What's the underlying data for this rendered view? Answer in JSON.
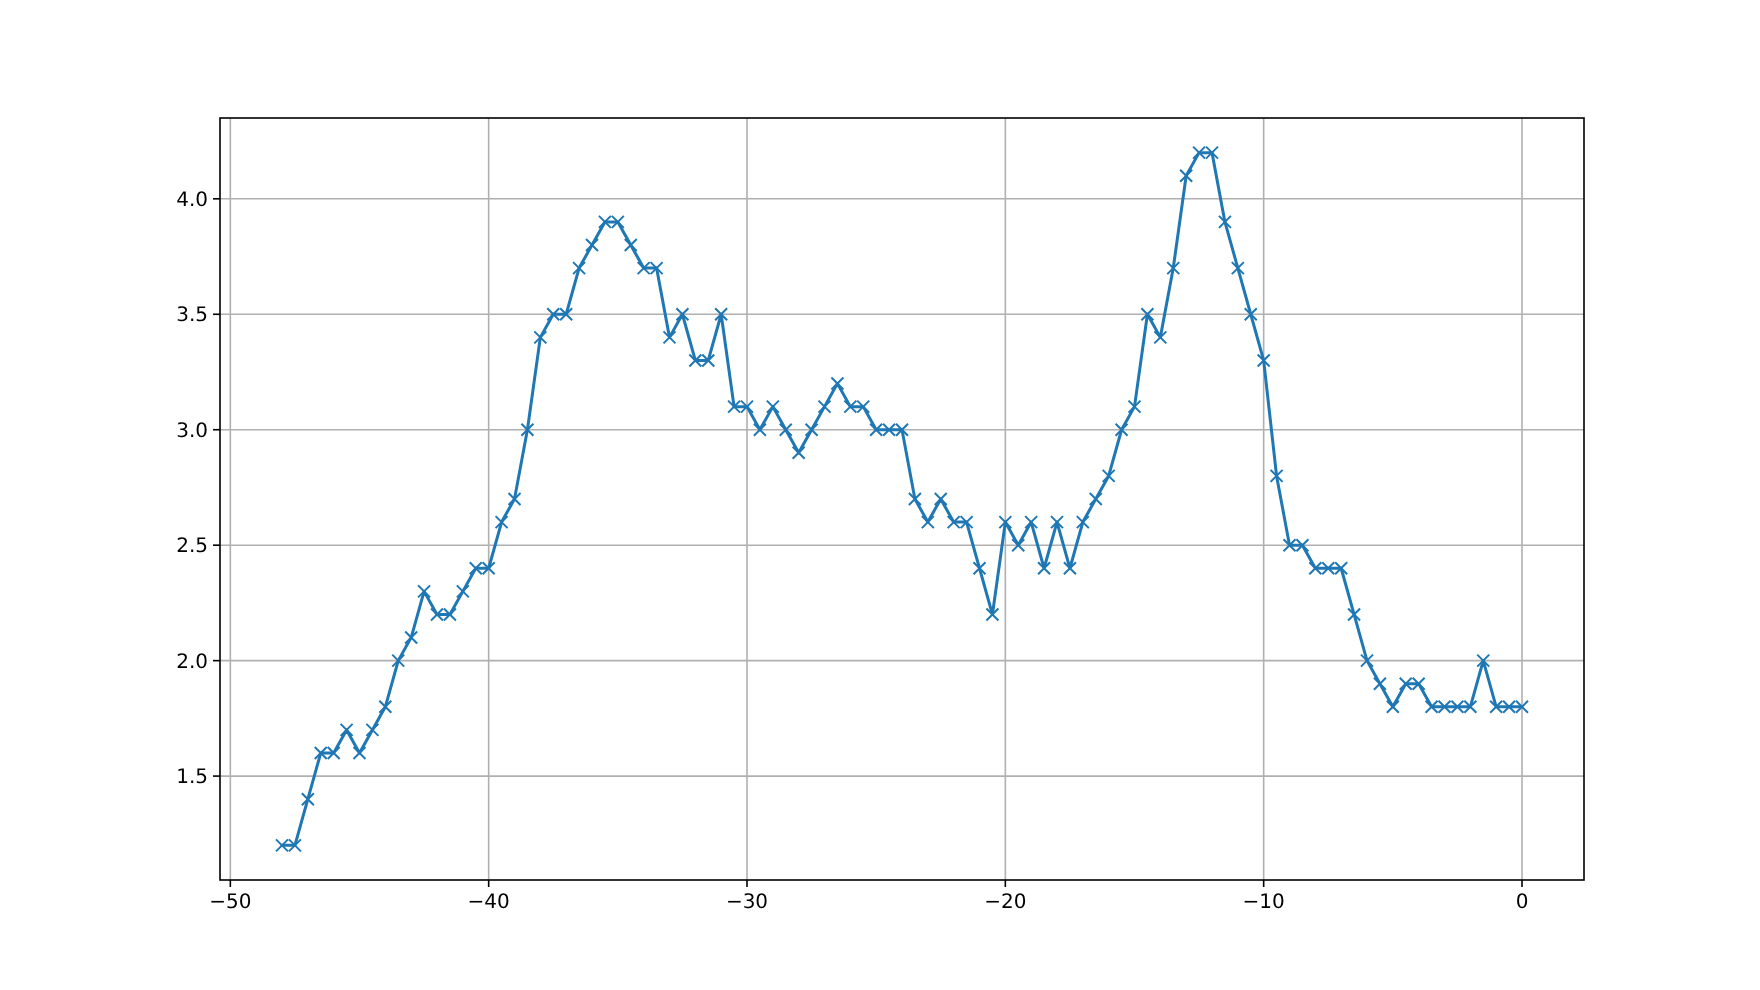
{
  "chart_data": {
    "type": "line",
    "x": [
      -48,
      -47.5,
      -47,
      -46.5,
      -46,
      -45.5,
      -45,
      -44.5,
      -44,
      -43.5,
      -43,
      -42.5,
      -42,
      -41.5,
      -41,
      -40.5,
      -40,
      -39.5,
      -39,
      -38.5,
      -38,
      -37.5,
      -37,
      -36.5,
      -36,
      -35.5,
      -35,
      -34.5,
      -34,
      -33.5,
      -33,
      -32.5,
      -32,
      -31.5,
      -31,
      -30.5,
      -30,
      -29.5,
      -29,
      -28.5,
      -28,
      -27.5,
      -27,
      -26.5,
      -26,
      -25.5,
      -25,
      -24.5,
      -24,
      -23.5,
      -23,
      -22.5,
      -22,
      -21.5,
      -21,
      -20.5,
      -20,
      -19.5,
      -19,
      -18.5,
      -18,
      -17.5,
      -17,
      -16.5,
      -16,
      -15.5,
      -15,
      -14.5,
      -14,
      -13.5,
      -13,
      -12.5,
      -12,
      -11.5,
      -11,
      -10.5,
      -10,
      -9.5,
      -9,
      -8.5,
      -8,
      -7.5,
      -7,
      -6.5,
      -6,
      -5.5,
      -5,
      -4.5,
      -4,
      -3.5,
      -3,
      -2.5,
      -2,
      -1.5,
      -1,
      -0.5,
      0
    ],
    "series": [
      {
        "color": "#1f77b4",
        "values": [
          1.2,
          1.2,
          1.4,
          1.6,
          1.6,
          1.7,
          1.6,
          1.7,
          1.8,
          2.0,
          2.1,
          2.3,
          2.2,
          2.2,
          2.3,
          2.4,
          2.4,
          2.6,
          2.7,
          3.0,
          3.4,
          3.5,
          3.5,
          3.7,
          3.8,
          3.9,
          3.9,
          3.8,
          3.7,
          3.7,
          3.4,
          3.5,
          3.3,
          3.3,
          3.5,
          3.1,
          3.1,
          3.0,
          3.1,
          3.0,
          2.9,
          3.0,
          3.1,
          3.2,
          3.1,
          3.1,
          3.0,
          3.0,
          3.0,
          2.7,
          2.6,
          2.7,
          2.6,
          2.6,
          2.4,
          2.2,
          2.6,
          2.5,
          2.6,
          2.4,
          2.6,
          2.4,
          2.6,
          2.7,
          2.8,
          3.0,
          3.1,
          3.5,
          3.4,
          3.7,
          4.1,
          4.2,
          4.2,
          3.9,
          3.7,
          3.5,
          3.3,
          2.8,
          2.5,
          2.5,
          2.4,
          2.4,
          2.4,
          2.2,
          2.0,
          1.9,
          1.8,
          1.9,
          1.9,
          1.8,
          1.8,
          1.8,
          1.8,
          2.0,
          1.8,
          1.8,
          1.8
        ]
      }
    ],
    "xlim": [
      -50.4,
      2.4
    ],
    "ylim": [
      1.05,
      4.35
    ],
    "xticks": [
      {
        "value": -50,
        "label": "−50"
      },
      {
        "value": -40,
        "label": "−40"
      },
      {
        "value": -30,
        "label": "−30"
      },
      {
        "value": -20,
        "label": "−20"
      },
      {
        "value": -10,
        "label": "−10"
      },
      0
    ],
    "yticks": [
      1.5,
      {
        "value": 2,
        "label": "2.0"
      },
      2.5,
      {
        "value": 3,
        "label": "3.0"
      },
      3.5,
      {
        "value": 4,
        "label": "4.0"
      }
    ],
    "grid": true,
    "marker": "cross",
    "line_style": "solid"
  }
}
